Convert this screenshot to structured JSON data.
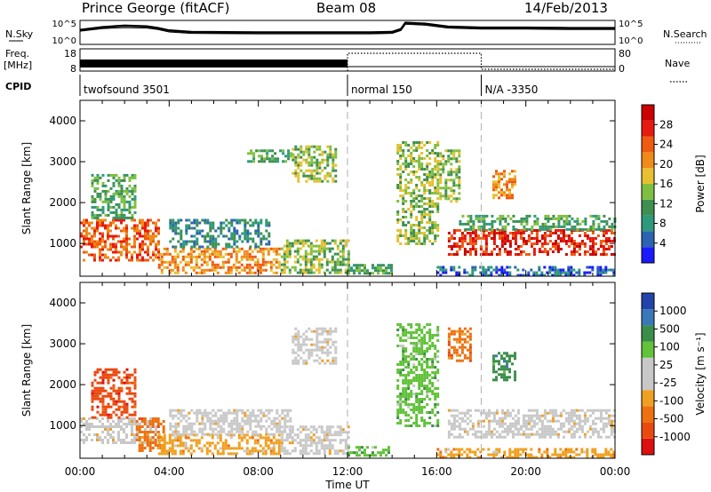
{
  "header": {
    "station": "Prince George (fitACF)",
    "beam": "Beam 08",
    "date": "14/Feb/2013"
  },
  "colors": {
    "power_scale": [
      "#1a1aff",
      "#2c63b3",
      "#2e9a7c",
      "#3f8f50",
      "#7fbf3f",
      "#e6c030",
      "#f08a18",
      "#ef5a10",
      "#e81a10",
      "#cc0000"
    ],
    "velocity_scale": [
      "#2244aa",
      "#3a77b8",
      "#3b8e4a",
      "#62c23a",
      "#c8c8c8",
      "#c8c8c8",
      "#f0a020",
      "#ef7010",
      "#ea4a10",
      "#dd1010"
    ]
  },
  "chart_data": [
    {
      "type": "line",
      "panel": "noise",
      "left_label": "N.Sky",
      "right_label": "N.Search",
      "left_ticks": [
        "10^5",
        "10^0"
      ],
      "right_ticks": [
        "10^5",
        "10^0"
      ],
      "x_unit": "hours UT",
      "x_range": [
        0,
        24
      ],
      "y_scale": "log",
      "series_sky": {
        "x": [
          0,
          1,
          2,
          3,
          3.5,
          4,
          5,
          8,
          11,
          12,
          13,
          14,
          14.4,
          14.6,
          15.5,
          16.5,
          18,
          20,
          22,
          24
        ],
        "y": [
          0.6,
          0.72,
          0.78,
          0.75,
          0.68,
          0.58,
          0.52,
          0.5,
          0.5,
          0.5,
          0.5,
          0.52,
          0.64,
          0.9,
          0.86,
          0.74,
          0.7,
          0.7,
          0.68,
          0.68
        ]
      },
      "series_search": {
        "x": [
          0,
          1,
          2,
          3,
          3.5,
          4,
          5,
          8,
          11,
          12,
          13,
          14,
          14.4,
          14.6,
          15.5,
          16.5,
          18,
          20,
          22,
          24
        ],
        "y": [
          0.55,
          0.66,
          0.7,
          0.68,
          0.62,
          0.52,
          0.46,
          0.44,
          0.44,
          0.44,
          0.44,
          0.46,
          0.58,
          0.84,
          0.8,
          0.68,
          0.64,
          0.64,
          0.62,
          0.62
        ]
      }
    },
    {
      "type": "line",
      "panel": "frequency",
      "left_label": "Freq.",
      "left_unit": "[MHz]",
      "right_label": "Nave",
      "left_ticks": [
        "18",
        "8"
      ],
      "right_ticks": [
        "80",
        "0"
      ],
      "segments": [
        {
          "x": [
            0,
            12
          ],
          "freq": "high-density bar"
        },
        {
          "x": [
            12,
            18
          ],
          "nave": 80
        },
        {
          "x": [
            18,
            24
          ],
          "nave": 3
        }
      ]
    },
    {
      "type": "table",
      "panel": "cpid",
      "label": "CPID",
      "modes": [
        {
          "name": "twofsound 3501",
          "start": 0,
          "end": 12
        },
        {
          "name": "normal 150",
          "start": 12,
          "end": 18
        },
        {
          "name": "N/A -3350",
          "start": 18,
          "end": 24
        }
      ]
    },
    {
      "type": "heatmap",
      "panel": "power",
      "ylabel": "Slant Range [km]",
      "yticks": [
        1000,
        2000,
        3000,
        4000
      ],
      "ylim": [
        200,
        4500
      ],
      "colorbar_label": "Power [dB]",
      "colorbar_ticks": [
        4,
        8,
        12,
        16,
        20,
        24,
        28
      ],
      "regions": [
        {
          "t0": 0.0,
          "t1": 3.5,
          "r0": 600,
          "r1": 1600,
          "level": 7
        },
        {
          "t0": 0.5,
          "t1": 2.5,
          "r0": 1600,
          "r1": 2700,
          "level": 3
        },
        {
          "t0": 3.5,
          "t1": 9.0,
          "r0": 300,
          "r1": 900,
          "level": 6
        },
        {
          "t0": 4.0,
          "t1": 8.5,
          "r0": 900,
          "r1": 1600,
          "level": 2
        },
        {
          "t0": 9.0,
          "t1": 12.0,
          "r0": 300,
          "r1": 1100,
          "level": 4
        },
        {
          "t0": 7.5,
          "t1": 9.5,
          "r0": 3000,
          "r1": 3300,
          "level": 3
        },
        {
          "t0": 9.5,
          "t1": 11.5,
          "r0": 2500,
          "r1": 3400,
          "level": 4
        },
        {
          "t0": 12.0,
          "t1": 14.0,
          "r0": 250,
          "r1": 500,
          "level": 3
        },
        {
          "t0": 14.2,
          "t1": 16.0,
          "r0": 1000,
          "r1": 3500,
          "level": 4
        },
        {
          "t0": 16.0,
          "t1": 17.0,
          "r0": 2000,
          "r1": 3300,
          "level": 4
        },
        {
          "t0": 16.5,
          "t1": 24.0,
          "r0": 700,
          "r1": 1350,
          "level": 8
        },
        {
          "t0": 17.0,
          "t1": 24.0,
          "r0": 1350,
          "r1": 1700,
          "level": 3
        },
        {
          "t0": 18.5,
          "t1": 19.5,
          "r0": 2100,
          "r1": 2800,
          "level": 6
        },
        {
          "t0": 16.0,
          "t1": 24.0,
          "r0": 200,
          "r1": 450,
          "level": 1
        }
      ]
    },
    {
      "type": "heatmap",
      "panel": "velocity",
      "ylabel": "Slant Range [km]",
      "yticks": [
        1000,
        2000,
        3000,
        4000
      ],
      "ylim": [
        200,
        4500
      ],
      "xticks": [
        "00:00",
        "04:00",
        "08:00",
        "12:00",
        "16:00",
        "20:00",
        "00:00"
      ],
      "xlabel": "Time UT",
      "colorbar_label": "Velocity [m s⁻¹]",
      "colorbar_ticks": [
        1000,
        500,
        100,
        25,
        -25,
        -100,
        -500,
        -1000
      ],
      "regions": [
        {
          "t0": 0.0,
          "t1": 3.5,
          "r0": 600,
          "r1": 1200,
          "level": 5
        },
        {
          "t0": 0.5,
          "t1": 2.5,
          "r0": 1200,
          "r1": 2400,
          "level": 8
        },
        {
          "t0": 2.5,
          "t1": 3.8,
          "r0": 400,
          "r1": 1200,
          "level": 7
        },
        {
          "t0": 3.5,
          "t1": 9.0,
          "r0": 300,
          "r1": 800,
          "level": 6
        },
        {
          "t0": 4.0,
          "t1": 9.5,
          "r0": 800,
          "r1": 1400,
          "level": 5
        },
        {
          "t0": 9.0,
          "t1": 12.0,
          "r0": 300,
          "r1": 1000,
          "level": 5
        },
        {
          "t0": 9.5,
          "t1": 11.5,
          "r0": 2500,
          "r1": 3400,
          "level": 5
        },
        {
          "t0": 12.0,
          "t1": 14.0,
          "r0": 250,
          "r1": 500,
          "level": 3
        },
        {
          "t0": 14.2,
          "t1": 16.0,
          "r0": 1000,
          "r1": 3500,
          "level": 3
        },
        {
          "t0": 16.5,
          "t1": 24.0,
          "r0": 700,
          "r1": 1400,
          "level": 5
        },
        {
          "t0": 18.5,
          "t1": 19.5,
          "r0": 2100,
          "r1": 2800,
          "level": 2
        },
        {
          "t0": 16.5,
          "t1": 17.5,
          "r0": 2600,
          "r1": 3400,
          "level": 7
        },
        {
          "t0": 16.0,
          "t1": 24.0,
          "r0": 200,
          "r1": 450,
          "level": 6
        }
      ]
    }
  ]
}
